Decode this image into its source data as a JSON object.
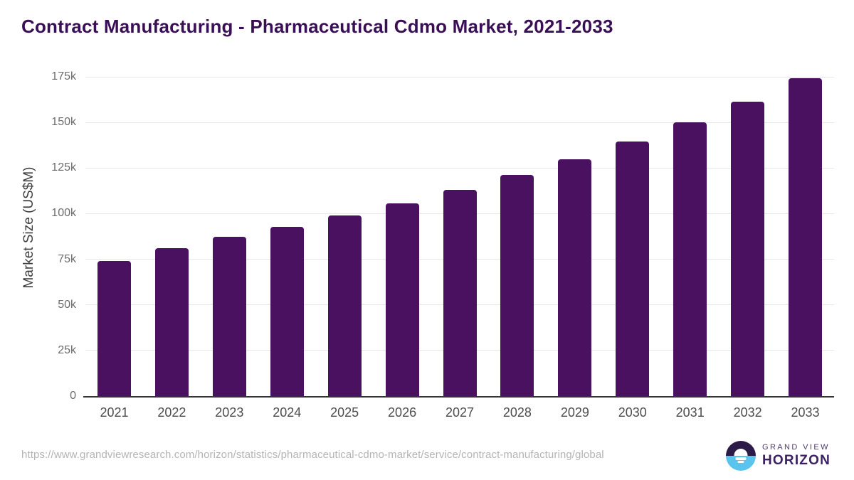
{
  "chart_data": {
    "type": "bar",
    "title": "Contract Manufacturing - Pharmaceutical Cdmo Market, 2021-2033",
    "categories": [
      "2021",
      "2022",
      "2023",
      "2024",
      "2025",
      "2026",
      "2027",
      "2028",
      "2029",
      "2030",
      "2031",
      "2032",
      "2033"
    ],
    "values": [
      74000,
      81000,
      87200,
      92700,
      99100,
      105500,
      113200,
      121300,
      129800,
      139500,
      150100,
      161500,
      174100
    ],
    "xlabel": "",
    "ylabel": "Market Size (US$M)",
    "ylim": [
      0,
      175000
    ],
    "yticks": [
      {
        "value": 0,
        "label": "0"
      },
      {
        "value": 25000,
        "label": "25k"
      },
      {
        "value": 50000,
        "label": "50k"
      },
      {
        "value": 75000,
        "label": "75k"
      },
      {
        "value": 100000,
        "label": "100k"
      },
      {
        "value": 125000,
        "label": "125k"
      },
      {
        "value": 150000,
        "label": "150k"
      },
      {
        "value": 175000,
        "label": "175k"
      }
    ],
    "grid": true,
    "legend": false,
    "bar_color": "#4b1161"
  },
  "colors": {
    "title": "#3a0f55",
    "bar": "#4b1161",
    "gridline": "#e7e7e7",
    "axis_line": "#333333",
    "x_tick": "#4d4d4d",
    "y_tick": "#6b6b6b",
    "y_axis_title": "#3f3f3f",
    "source_url": "#b4b4b4",
    "logo_blue": "#5bc4ec",
    "logo_purple": "#2c1a47",
    "logo_text": "#3b2160"
  },
  "footer": {
    "source_url": "https://www.grandviewresearch.com/horizon/statistics/pharmaceutical-cdmo-market/service/contract-manufacturing/global",
    "logo": {
      "top_text": "GRAND VIEW",
      "bottom_text": "HORIZON"
    }
  }
}
